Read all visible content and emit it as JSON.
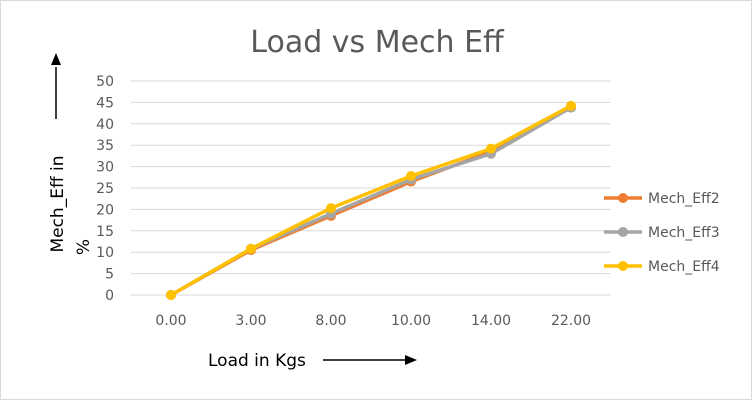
{
  "chart_data": {
    "type": "line",
    "title": "Load vs Mech Eff",
    "xlabel": "Load in Kgs",
    "ylabel_line1": "Mech_Eff in",
    "ylabel_line2": "%",
    "categories": [
      "0.00",
      "3.00",
      "8.00",
      "10.00",
      "14.00",
      "22.00"
    ],
    "ylim": [
      0,
      50
    ],
    "ytick_step": 5,
    "grid": true,
    "legend_position": "right",
    "series": [
      {
        "name": "Mech_Eff2",
        "color": "#ED7D31",
        "values": [
          0,
          10.5,
          18.5,
          26.5,
          33.5,
          43.8
        ]
      },
      {
        "name": "Mech_Eff3",
        "color": "#A5A5A5",
        "values": [
          0,
          10.8,
          19.0,
          27.0,
          33.0,
          43.8
        ]
      },
      {
        "name": "Mech_Eff4",
        "color": "#FFC000",
        "values": [
          0,
          10.8,
          20.3,
          27.8,
          34.2,
          44.2
        ]
      }
    ]
  }
}
